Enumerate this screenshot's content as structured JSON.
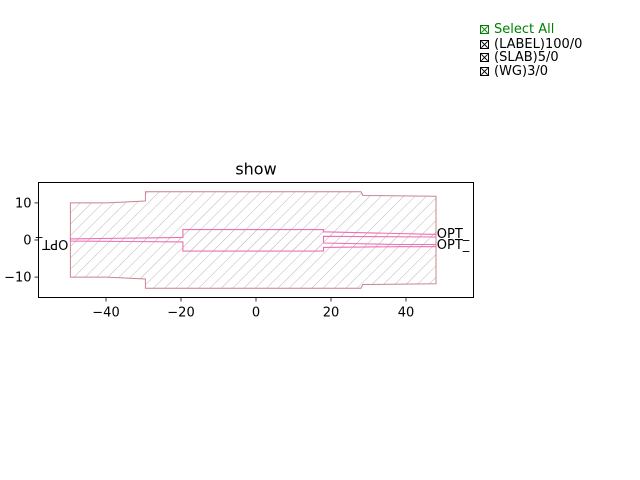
{
  "chart_data": {
    "type": "diagram",
    "title": "show",
    "xlim": [
      -58,
      58
    ],
    "ylim": [
      -15.5,
      15.5
    ],
    "x_ticks": [
      -40,
      -20,
      0,
      20,
      40
    ],
    "y_ticks": [
      -10,
      0,
      10
    ],
    "polygons": [
      {
        "layer": "SLAB",
        "points": [
          [
            -49.5,
            10
          ],
          [
            -40,
            10
          ],
          [
            -29.5,
            10.5
          ],
          [
            -29.5,
            13
          ],
          [
            28,
            13
          ],
          [
            28.5,
            12
          ],
          [
            48,
            11.8
          ],
          [
            48,
            -11.8
          ],
          [
            28.5,
            -12
          ],
          [
            28,
            -13
          ],
          [
            -29.5,
            -13
          ],
          [
            -29.5,
            -10.5
          ],
          [
            -40,
            -10
          ],
          [
            -49.5,
            -10
          ]
        ]
      },
      {
        "layer": "WG",
        "points": [
          [
            -49.5,
            0.3
          ],
          [
            -19.5,
            0.7
          ],
          [
            -19.5,
            2.8
          ],
          [
            18,
            2.8
          ],
          [
            18,
            2.2
          ],
          [
            48,
            1.5
          ],
          [
            48,
            0.8
          ],
          [
            18,
            1.0
          ],
          [
            18,
            -0.8
          ],
          [
            38,
            -1.2
          ],
          [
            48,
            -1.2
          ],
          [
            48,
            -1.8
          ],
          [
            38,
            -1.8
          ],
          [
            18,
            -2.0
          ],
          [
            18,
            -3.0
          ],
          [
            -19.5,
            -3.0
          ],
          [
            -19.5,
            -0.5
          ],
          [
            -49.5,
            -0.3
          ]
        ]
      }
    ],
    "ports": [
      {
        "label": "OPT_",
        "x": 48.2,
        "y": 1.8
      },
      {
        "label": "OPT_",
        "x": 48.2,
        "y": -1.2
      },
      {
        "label": "OPT_",
        "x": -49.5,
        "y": 0.3
      }
    ],
    "colors": {
      "outline": "#c8848c",
      "hatch": "#a8a8a8",
      "waveguide": "#f06eb4"
    }
  },
  "legend": {
    "select_all": "Select All",
    "items": [
      "(LABEL)100/0",
      "(SLAB)5/0",
      "(WG)3/0"
    ]
  }
}
